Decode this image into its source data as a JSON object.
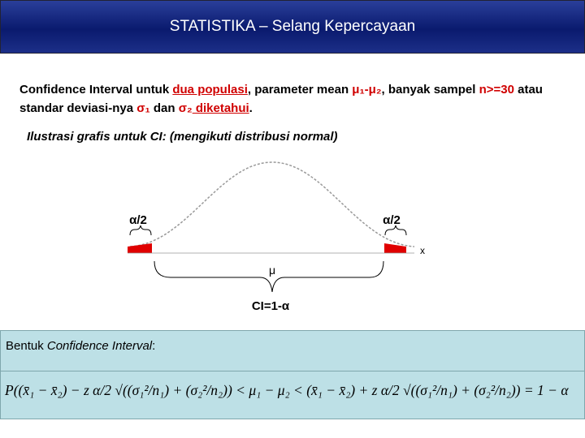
{
  "header": {
    "title": "STATISTIKA – Selang Kepercayaan"
  },
  "intro": {
    "segments": [
      {
        "text": "Confidence Interval untuk ",
        "color": "black"
      },
      {
        "text": "dua populasi",
        "color": "red",
        "underline": true
      },
      {
        "text": ", parameter mean ",
        "color": "black"
      },
      {
        "text": "μ₁-μ₂",
        "color": "red"
      },
      {
        "text": ", banyak sampel ",
        "color": "black"
      },
      {
        "text": "n>=30",
        "color": "red"
      },
      {
        "text": " atau standar deviasi-nya ",
        "color": "black"
      },
      {
        "text": "σ₁",
        "color": "red"
      },
      {
        "text": " dan ",
        "color": "black"
      },
      {
        "text": "σ₂",
        "color": "red"
      },
      {
        "text": " diketahui",
        "color": "red",
        "underline": true
      },
      {
        "text": ".",
        "color": "black"
      }
    ]
  },
  "illustration": {
    "heading": "Ilustrasi grafis untuk CI: (mengikuti distribusi normal)",
    "left_tail": "α/2",
    "right_tail": "α/2",
    "axis": "x",
    "center": "μ",
    "interval": "CI=1-α"
  },
  "box": {
    "label_plain": "Bentuk ",
    "label_italic": "Confidence Interval",
    "label_end": ":",
    "formula": "P((x̄₁ − x̄₂) − z α/2 √((σ₁²/n₁) + (σ₂²/n₂)) < μ₁ − μ₂ < (x̄₁ − x̄₂) + z α/2 √((σ₁²/n₁) + (σ₂²/n₂)) = 1 − α"
  }
}
